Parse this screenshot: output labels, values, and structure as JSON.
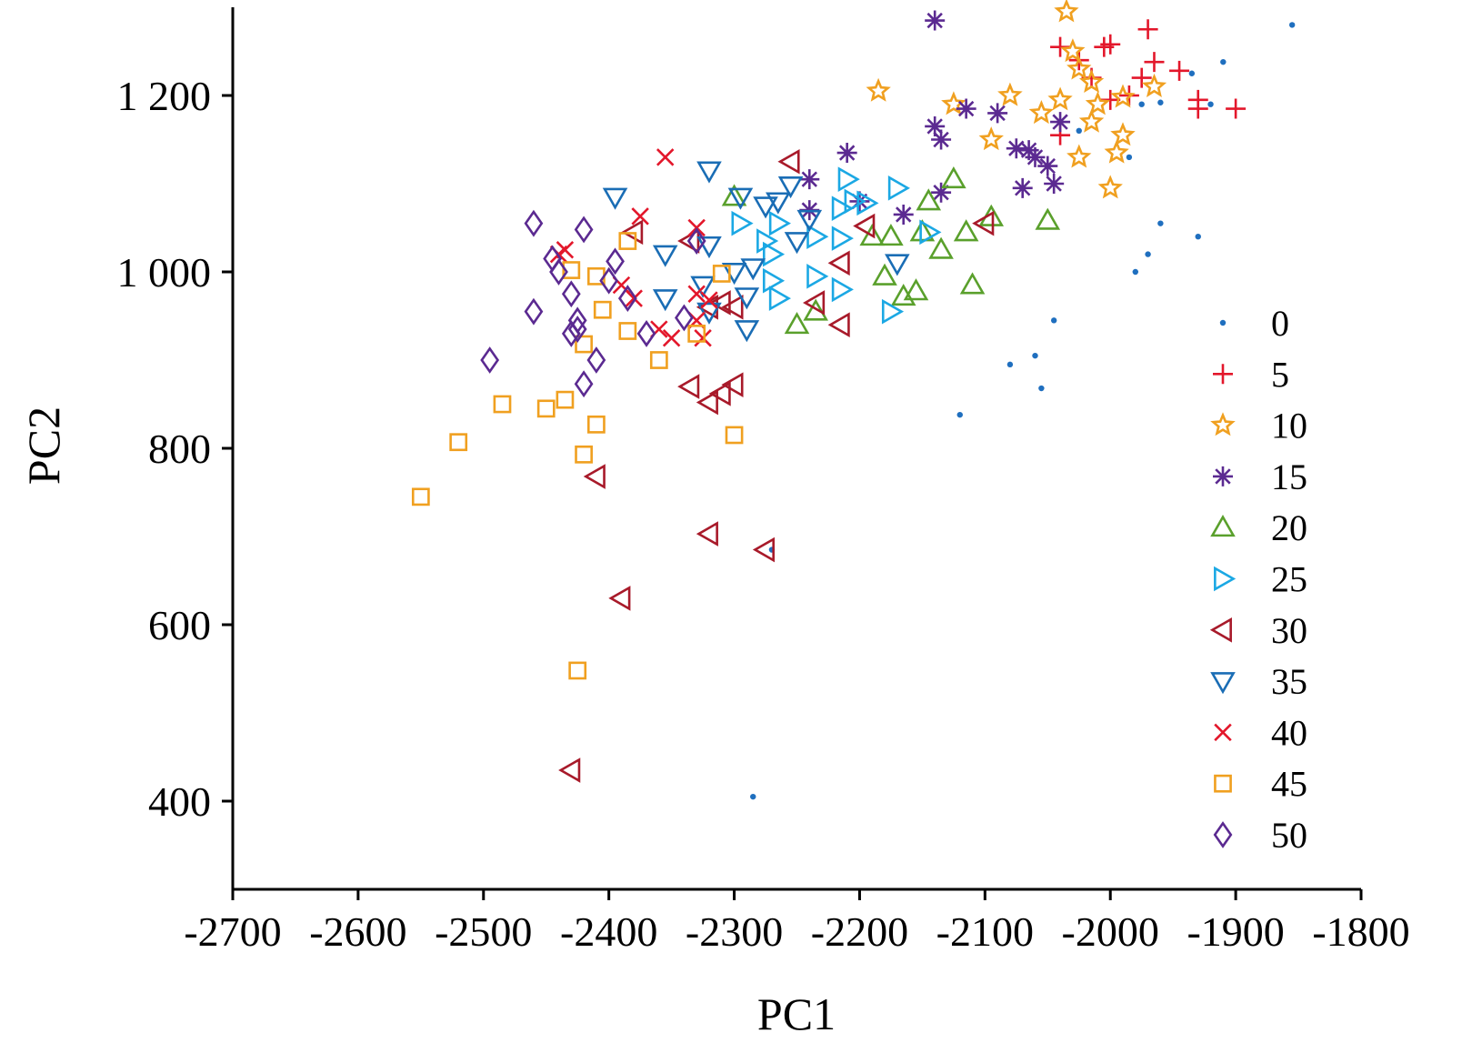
{
  "chart_data": {
    "type": "scatter",
    "xlabel": "PC1",
    "ylabel": "PC2",
    "xlim": [
      -2700,
      -1800
    ],
    "ylim": [
      300,
      1300
    ],
    "xticks": [
      -2700,
      -2600,
      -2500,
      -2400,
      -2300,
      -2200,
      -2100,
      -2000,
      -1900,
      -1800
    ],
    "xtick_labels": [
      "-2700",
      "-2600",
      "-2500",
      "-2400",
      "-2300",
      "-2200",
      "-2100",
      "-2000",
      "-1900",
      "-1800"
    ],
    "yticks": [
      400,
      600,
      800,
      1000,
      1200
    ],
    "ytick_labels": [
      "400",
      "600",
      "800",
      "1 000",
      "1 200"
    ],
    "grid": false,
    "legend_position": "right",
    "series": [
      {
        "name": "0",
        "marker": "dot",
        "color": "#1f6fbf",
        "points": [
          [
            -1855,
            1280
          ],
          [
            -1910,
            1238
          ],
          [
            -1935,
            1225
          ],
          [
            -1960,
            1192
          ],
          [
            -1985,
            1130
          ],
          [
            -1920,
            1190
          ],
          [
            -1975,
            1190
          ],
          [
            -2025,
            1160
          ],
          [
            -1960,
            1055
          ],
          [
            -1970,
            1020
          ],
          [
            -1980,
            1000
          ],
          [
            -1930,
            1040
          ],
          [
            -2045,
            945
          ],
          [
            -2060,
            905
          ],
          [
            -2080,
            895
          ],
          [
            -2055,
            868
          ],
          [
            -2120,
            838
          ],
          [
            -2285,
            405
          ],
          [
            -2270,
            685
          ]
        ]
      },
      {
        "name": "5",
        "marker": "plus",
        "color": "#e3172b",
        "points": [
          [
            -1970,
            1275
          ],
          [
            -2040,
            1255
          ],
          [
            -2005,
            1255
          ],
          [
            -2000,
            1258
          ],
          [
            -1965,
            1238
          ],
          [
            -1945,
            1228
          ],
          [
            -1975,
            1220
          ],
          [
            -1985,
            1200
          ],
          [
            -2000,
            1195
          ],
          [
            -1930,
            1195
          ],
          [
            -1930,
            1185
          ],
          [
            -1900,
            1185
          ],
          [
            -2040,
            1155
          ],
          [
            -2025,
            1240
          ],
          [
            -2015,
            1220
          ]
        ]
      },
      {
        "name": "10",
        "marker": "star",
        "color": "#f0a020",
        "points": [
          [
            -2035,
            1295
          ],
          [
            -2030,
            1250
          ],
          [
            -2025,
            1230
          ],
          [
            -2015,
            1215
          ],
          [
            -1965,
            1210
          ],
          [
            -2040,
            1195
          ],
          [
            -1990,
            1198
          ],
          [
            -2010,
            1190
          ],
          [
            -2125,
            1190
          ],
          [
            -2080,
            1200
          ],
          [
            -2185,
            1205
          ],
          [
            -2055,
            1180
          ],
          [
            -2015,
            1170
          ],
          [
            -1990,
            1155
          ],
          [
            -2095,
            1150
          ],
          [
            -1995,
            1135
          ],
          [
            -2025,
            1130
          ],
          [
            -2000,
            1095
          ]
        ]
      },
      {
        "name": "15",
        "marker": "asterisk",
        "color": "#5b2a91",
        "points": [
          [
            -2140,
            1285
          ],
          [
            -2115,
            1185
          ],
          [
            -2090,
            1180
          ],
          [
            -2040,
            1170
          ],
          [
            -2140,
            1165
          ],
          [
            -2135,
            1150
          ],
          [
            -2075,
            1140
          ],
          [
            -2065,
            1138
          ],
          [
            -2060,
            1130
          ],
          [
            -2050,
            1120
          ],
          [
            -2045,
            1100
          ],
          [
            -2070,
            1095
          ],
          [
            -2210,
            1135
          ],
          [
            -2240,
            1105
          ],
          [
            -2135,
            1090
          ],
          [
            -2200,
            1080
          ],
          [
            -2240,
            1070
          ],
          [
            -2165,
            1065
          ]
        ]
      },
      {
        "name": "20",
        "marker": "triangle-up",
        "color": "#5aa02c",
        "points": [
          [
            -2125,
            1105
          ],
          [
            -2300,
            1085
          ],
          [
            -2145,
            1080
          ],
          [
            -2095,
            1062
          ],
          [
            -2050,
            1058
          ],
          [
            -2115,
            1045
          ],
          [
            -2150,
            1045
          ],
          [
            -2175,
            1040
          ],
          [
            -2190,
            1040
          ],
          [
            -2135,
            1025
          ],
          [
            -2110,
            985
          ],
          [
            -2155,
            978
          ],
          [
            -2165,
            972
          ],
          [
            -2180,
            995
          ],
          [
            -2235,
            955
          ],
          [
            -2250,
            940
          ]
        ]
      },
      {
        "name": "25",
        "marker": "triangle-right",
        "color": "#1ba8e4",
        "points": [
          [
            -2210,
            1105
          ],
          [
            -2170,
            1095
          ],
          [
            -2205,
            1080
          ],
          [
            -2195,
            1078
          ],
          [
            -2215,
            1072
          ],
          [
            -2265,
            1055
          ],
          [
            -2295,
            1055
          ],
          [
            -2235,
            1040
          ],
          [
            -2215,
            1038
          ],
          [
            -2275,
            1035
          ],
          [
            -2145,
            1045
          ],
          [
            -2270,
            1020
          ],
          [
            -2235,
            995
          ],
          [
            -2215,
            980
          ],
          [
            -2270,
            990
          ],
          [
            -2265,
            970
          ],
          [
            -2175,
            955
          ]
        ]
      },
      {
        "name": "30",
        "marker": "triangle-left",
        "color": "#a81a2a",
        "points": [
          [
            -2255,
            1125
          ],
          [
            -2100,
            1055
          ],
          [
            -2195,
            1052
          ],
          [
            -2215,
            1010
          ],
          [
            -2235,
            965
          ],
          [
            -2300,
            960
          ],
          [
            -2215,
            940
          ],
          [
            -2310,
            965
          ],
          [
            -2320,
            960
          ],
          [
            -2335,
            1035
          ],
          [
            -2335,
            870
          ],
          [
            -2310,
            862
          ],
          [
            -2320,
            852
          ],
          [
            -2300,
            872
          ],
          [
            -2410,
            768
          ],
          [
            -2320,
            703
          ],
          [
            -2275,
            685
          ],
          [
            -2390,
            630
          ],
          [
            -2430,
            435
          ],
          [
            -2380,
            1045
          ]
        ]
      },
      {
        "name": "35",
        "marker": "triangle-down",
        "color": "#1a6db5",
        "points": [
          [
            -2320,
            1115
          ],
          [
            -2395,
            1085
          ],
          [
            -2295,
            1085
          ],
          [
            -2265,
            1080
          ],
          [
            -2255,
            1098
          ],
          [
            -2275,
            1075
          ],
          [
            -2240,
            1060
          ],
          [
            -2320,
            1030
          ],
          [
            -2250,
            1035
          ],
          [
            -2355,
            1020
          ],
          [
            -2170,
            1010
          ],
          [
            -2285,
            1005
          ],
          [
            -2300,
            1000
          ],
          [
            -2325,
            985
          ],
          [
            -2355,
            970
          ],
          [
            -2290,
            972
          ],
          [
            -2320,
            955
          ],
          [
            -2290,
            935
          ]
        ]
      },
      {
        "name": "40",
        "marker": "x",
        "color": "#e3172b",
        "points": [
          [
            -2355,
            1130
          ],
          [
            -2375,
            1063
          ],
          [
            -2330,
            1050
          ],
          [
            -2435,
            1025
          ],
          [
            -2440,
            1020
          ],
          [
            -2390,
            985
          ],
          [
            -2380,
            970
          ],
          [
            -2330,
            975
          ],
          [
            -2320,
            968
          ],
          [
            -2360,
            935
          ],
          [
            -2350,
            925
          ],
          [
            -2325,
            925
          ],
          [
            -2330,
            945
          ]
        ]
      },
      {
        "name": "45",
        "marker": "square",
        "color": "#f0a020",
        "points": [
          [
            -2385,
            1035
          ],
          [
            -2430,
            1002
          ],
          [
            -2410,
            995
          ],
          [
            -2310,
            998
          ],
          [
            -2405,
            957
          ],
          [
            -2385,
            933
          ],
          [
            -2420,
            918
          ],
          [
            -2360,
            900
          ],
          [
            -2330,
            930
          ],
          [
            -2485,
            850
          ],
          [
            -2450,
            845
          ],
          [
            -2435,
            855
          ],
          [
            -2410,
            827
          ],
          [
            -2300,
            815
          ],
          [
            -2520,
            807
          ],
          [
            -2420,
            793
          ],
          [
            -2550,
            745
          ],
          [
            -2425,
            548
          ]
        ]
      },
      {
        "name": "50",
        "marker": "diamond",
        "color": "#5b2a91",
        "points": [
          [
            -2460,
            1055
          ],
          [
            -2420,
            1048
          ],
          [
            -2445,
            1015
          ],
          [
            -2440,
            1000
          ],
          [
            -2395,
            1012
          ],
          [
            -2400,
            990
          ],
          [
            -2430,
            975
          ],
          [
            -2385,
            970
          ],
          [
            -2460,
            955
          ],
          [
            -2425,
            945
          ],
          [
            -2430,
            930
          ],
          [
            -2425,
            935
          ],
          [
            -2370,
            930
          ],
          [
            -2410,
            900
          ],
          [
            -2495,
            900
          ],
          [
            -2420,
            873
          ],
          [
            -2340,
            948
          ],
          [
            -2330,
            1035
          ]
        ]
      }
    ]
  }
}
